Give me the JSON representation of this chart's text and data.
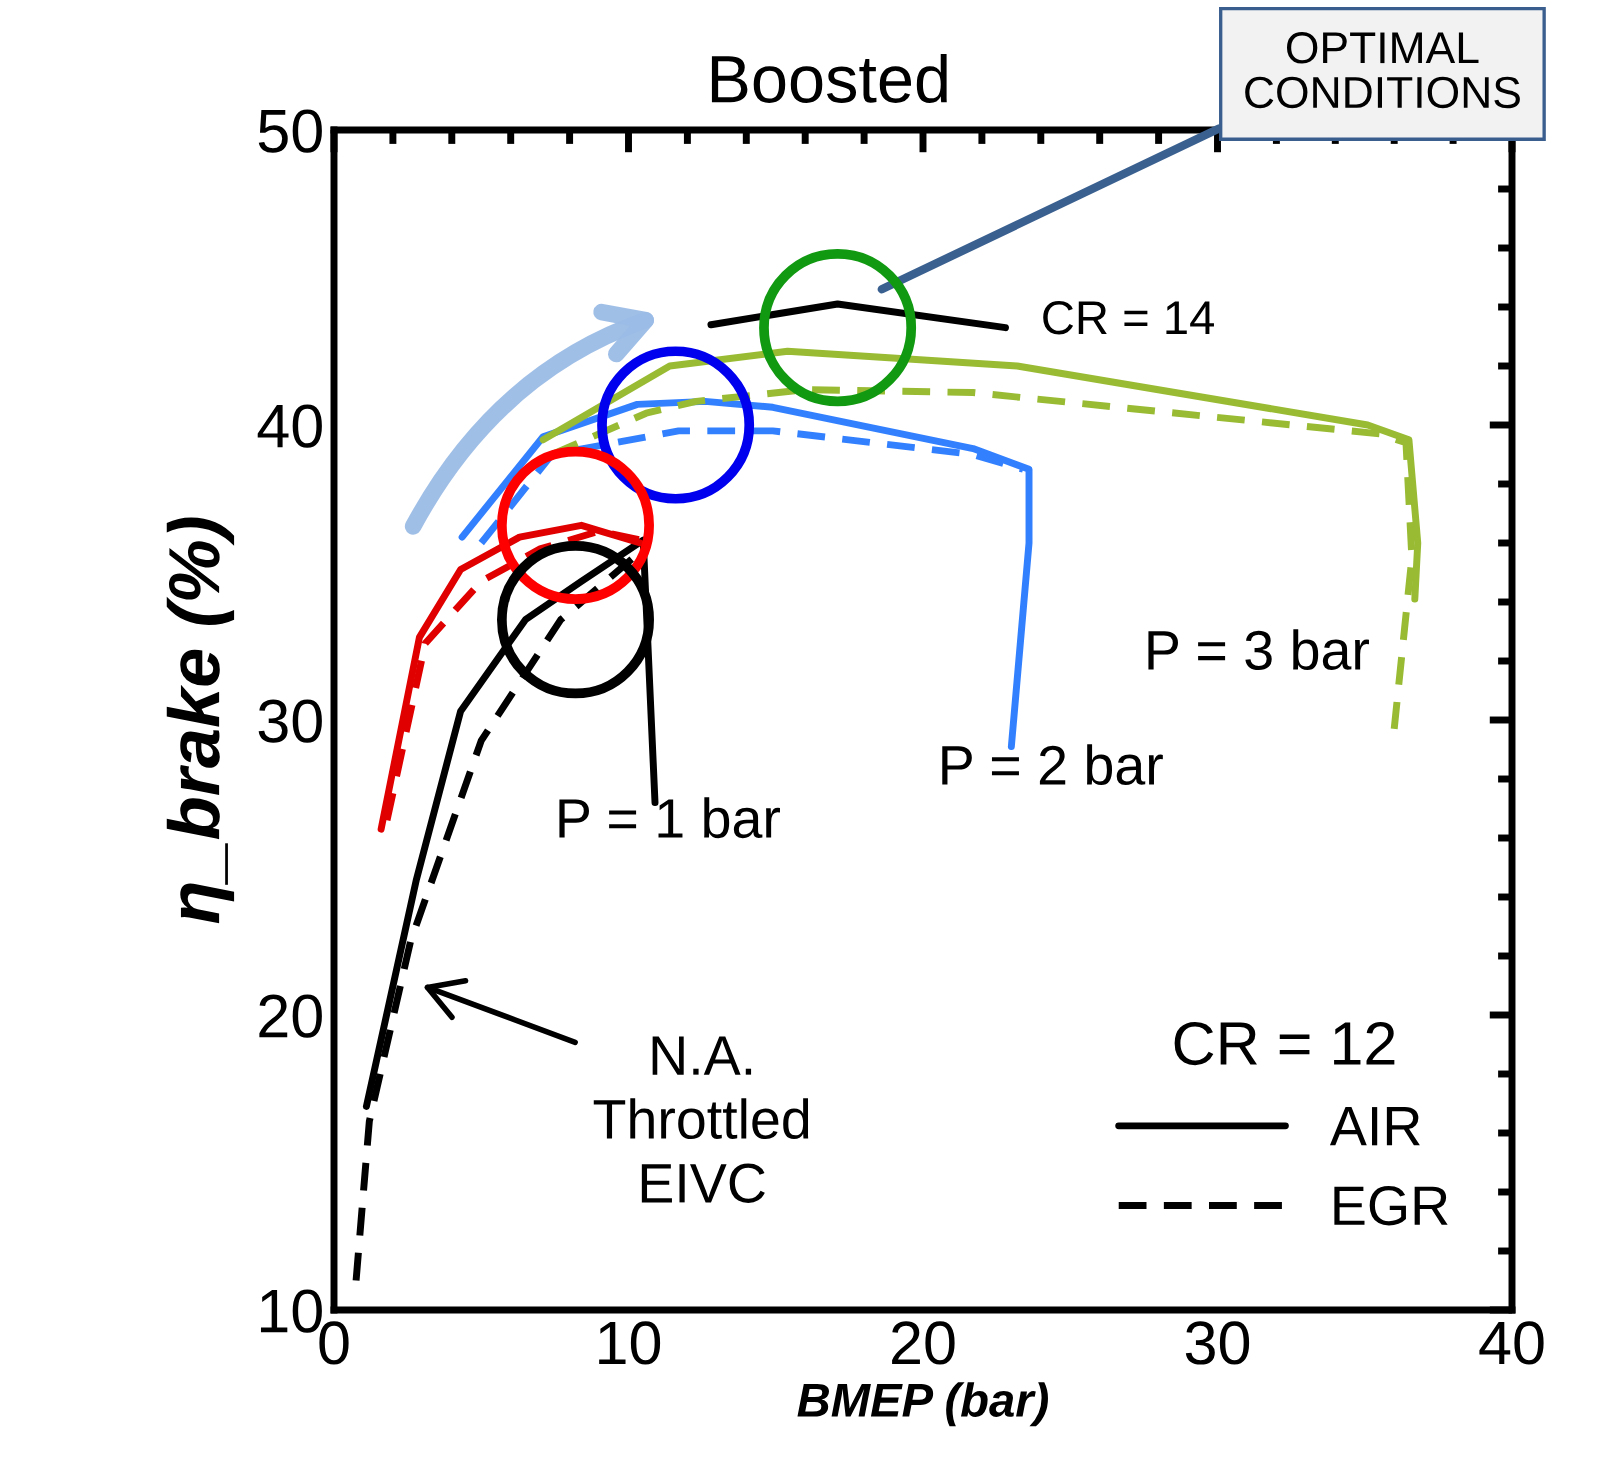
{
  "chart_data": {
    "type": "line",
    "title": "Boosted",
    "xlabel": "BMEP (bar)",
    "ylabel": "η_brake (%)",
    "legend_title": "CR = 12",
    "xlim": [
      0,
      40
    ],
    "ylim": [
      10,
      50
    ],
    "xticks": [
      0,
      10,
      20,
      30,
      40
    ],
    "yticks": [
      10,
      20,
      30,
      40,
      50
    ],
    "grid": false,
    "legend": "bottom right",
    "marker": "none",
    "series": [
      {
        "name": "AIR",
        "color": "#000000",
        "line_style": "solid",
        "x": [
          1.1,
          2.8,
          4.3,
          6.5,
          8.4,
          10.5,
          10.9
        ],
        "values": [
          16.9,
          24.6,
          30.3,
          33.4,
          34.7,
          36.1,
          27.2
        ]
      },
      {
        "name": "EGR",
        "color": "#000000",
        "line_style": "dashed",
        "x": [
          0.75,
          1.2,
          2.6,
          5.0,
          7.7,
          10.4
        ],
        "values": [
          11.0,
          16.4,
          22.5,
          29.3,
          33.4,
          35.7
        ]
      },
      {
        "color": "#e00000",
        "line_style": "solid",
        "x": [
          1.6,
          2.9,
          4.3,
          6.3,
          8.4,
          10.4
        ],
        "values": [
          26.3,
          32.8,
          35.1,
          36.2,
          36.6,
          36.0
        ]
      },
      {
        "color": "#e00000",
        "line_style": "dashed",
        "x": [
          1.8,
          3.1,
          5.0,
          7.0,
          9.0,
          10.4
        ],
        "values": [
          26.6,
          32.6,
          34.7,
          35.8,
          36.4,
          36.1
        ]
      },
      {
        "color": "#3380ff",
        "line_style": "solid",
        "x": [
          4.35,
          7.1,
          10.3,
          12.6,
          14.9,
          21.7,
          23.6,
          23.6,
          23.0
        ],
        "values": [
          36.2,
          39.6,
          40.7,
          40.8,
          40.6,
          39.2,
          38.5,
          36.0,
          29.1
        ]
      },
      {
        "color": "#3380ff",
        "line_style": "dashed",
        "x": [
          5.0,
          7.4,
          11.7,
          14.9,
          21.7,
          23.4
        ],
        "values": [
          36.0,
          39.0,
          39.8,
          39.8,
          39.0,
          38.5
        ]
      },
      {
        "color": "#99bb33",
        "line_style": "solid",
        "x": [
          7.1,
          11.4,
          15.4,
          23.2,
          35.1,
          36.5,
          36.8,
          36.7
        ],
        "values": [
          39.5,
          42.0,
          42.5,
          42.0,
          40.0,
          39.5,
          36.0,
          34.1
        ]
      },
      {
        "color": "#99bb33",
        "line_style": "dashed",
        "x": [
          7.4,
          10.6,
          12.3,
          16.0,
          21.7,
          35.5,
          36.4,
          36.6,
          36.0
        ],
        "values": [
          39.0,
          40.4,
          40.8,
          41.2,
          41.1,
          39.7,
          39.4,
          35.5,
          29.7
        ]
      },
      {
        "color": "#000000",
        "line_style": "solid",
        "x": [
          12.8,
          17.1,
          22.8
        ],
        "values": [
          43.4,
          44.1,
          43.3
        ]
      }
    ],
    "annotations": [
      "OPTIMAL\nCONDITIONS",
      "CR = 14",
      "P = 1 bar",
      "P = 2 bar",
      "P = 3 bar",
      "N.A.\nThrottled\nEIVC"
    ]
  }
}
